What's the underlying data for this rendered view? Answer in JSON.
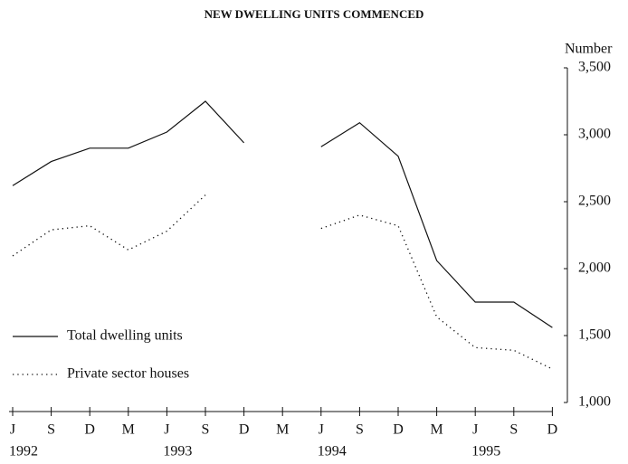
{
  "chart_data": {
    "type": "line",
    "title": "NEW DWELLING UNITS COMMENCED",
    "y_axis_label": "Number",
    "categories": [
      "J",
      "S",
      "D",
      "M",
      "J",
      "S",
      "D",
      "M",
      "J",
      "S",
      "D",
      "M",
      "J",
      "S",
      "D"
    ],
    "years": [
      "1992",
      null,
      null,
      null,
      "1993",
      null,
      null,
      null,
      "1994",
      null,
      null,
      null,
      "1995",
      null,
      null
    ],
    "series": [
      {
        "name": "Total dwelling units",
        "color": "#111111",
        "style": "solid",
        "values": [
          2620,
          2800,
          2900,
          2900,
          3020,
          3250,
          2940,
          null,
          2910,
          3090,
          2840,
          2060,
          1750,
          1750,
          1560
        ]
      },
      {
        "name": "Private sector houses",
        "color": "#111111",
        "style": "dotted",
        "values": [
          2095,
          2290,
          2320,
          2140,
          2280,
          2550,
          null,
          null,
          2300,
          2400,
          2320,
          1640,
          1410,
          1390,
          1250
        ]
      }
    ],
    "ylim": [
      1000,
      3500
    ],
    "yticks": [
      {
        "value": 1000,
        "label": "1,000"
      },
      {
        "value": 1500,
        "label": "1,500"
      },
      {
        "value": 2000,
        "label": "2,000"
      },
      {
        "value": 2500,
        "label": "2,500"
      },
      {
        "value": 3000,
        "label": "3,000"
      },
      {
        "value": 3500,
        "label": "3,500"
      }
    ],
    "legend": "lower left",
    "grid": false
  }
}
